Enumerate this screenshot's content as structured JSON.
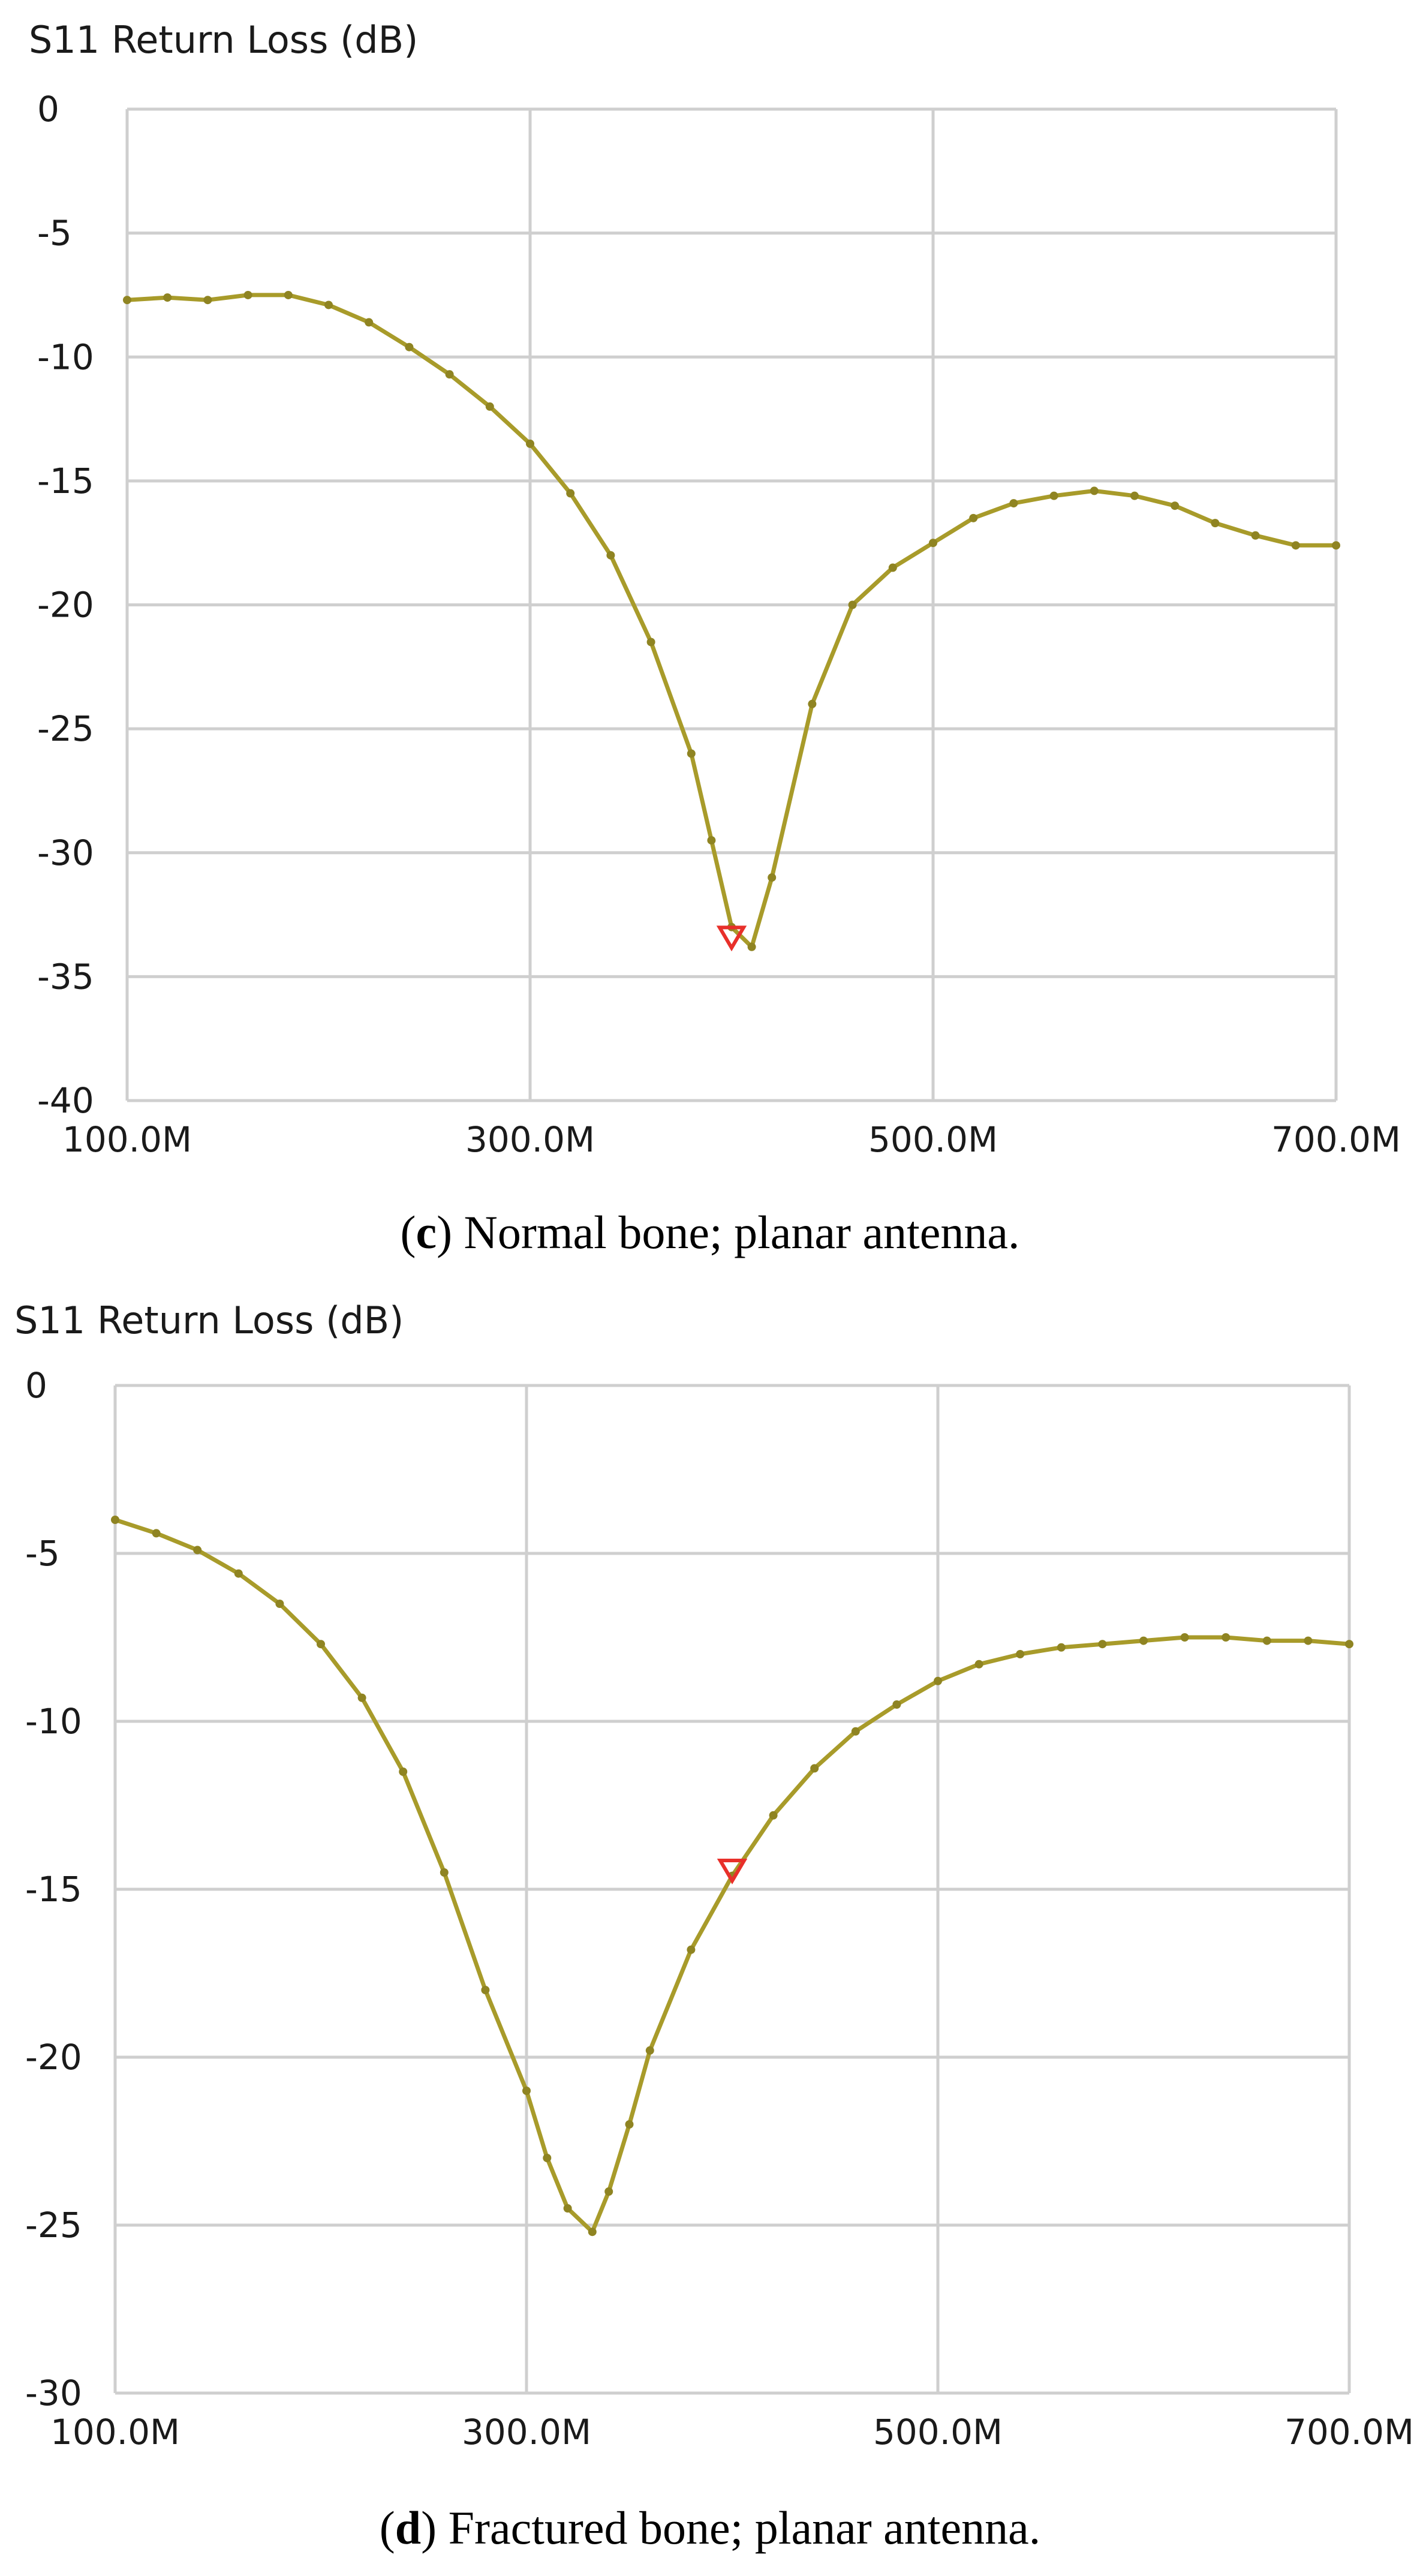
{
  "chart_data": [
    {
      "type": "line",
      "y_axis_title": "S11 Return Loss (dB)",
      "caption_letter": "c",
      "caption_text": ") Normal bone; planar antenna.",
      "x_tick_labels": [
        "100.0M",
        "300.0M",
        "500.0M",
        "700.0M"
      ],
      "x_ticks": [
        100,
        300,
        500,
        700
      ],
      "y_tick_labels": [
        "0",
        "-5",
        "-10",
        "-15",
        "-20",
        "-25",
        "-30",
        "-35",
        "-40"
      ],
      "y_ticks": [
        0,
        -5,
        -10,
        -15,
        -20,
        -25,
        -30,
        -35,
        -40
      ],
      "xlim": [
        100,
        700
      ],
      "ylim": [
        -40,
        0
      ],
      "grid": true,
      "series_color": "#a89b2a",
      "marker_color": "#e8302a",
      "marker": {
        "x": 400,
        "y": -33.5
      },
      "series": [
        {
          "x": [
            100,
            120,
            140,
            160,
            180,
            200,
            220,
            240,
            260,
            280,
            300,
            320,
            340,
            360,
            380,
            390,
            400,
            410,
            420,
            440,
            460,
            480,
            500,
            520,
            540,
            560,
            580,
            600,
            620,
            640,
            660,
            680,
            700
          ],
          "values": [
            -7.7,
            -7.6,
            -7.7,
            -7.5,
            -7.5,
            -7.9,
            -8.6,
            -9.6,
            -10.7,
            -12.0,
            -13.5,
            -15.5,
            -18.0,
            -21.5,
            -26.0,
            -29.5,
            -33.0,
            -33.8,
            -31.0,
            -24.0,
            -20.0,
            -18.5,
            -17.5,
            -16.5,
            -15.9,
            -15.6,
            -15.4,
            -15.6,
            -16.0,
            -16.7,
            -17.2,
            -17.6,
            -17.6
          ]
        }
      ]
    },
    {
      "type": "line",
      "y_axis_title": "S11 Return Loss (dB)",
      "caption_letter": "d",
      "caption_text": ") Fractured bone; planar antenna.",
      "x_tick_labels": [
        "100.0M",
        "300.0M",
        "500.0M",
        "700.0M"
      ],
      "x_ticks": [
        100,
        300,
        500,
        700
      ],
      "y_tick_labels": [
        "0",
        "-5",
        "-10",
        "-15",
        "-20",
        "-25",
        "-30"
      ],
      "y_ticks": [
        0,
        -5,
        -10,
        -15,
        -20,
        -25,
        -30
      ],
      "xlim": [
        100,
        700
      ],
      "ylim": [
        -30,
        0
      ],
      "grid": true,
      "series_color": "#a89b2a",
      "marker_color": "#e8302a",
      "marker": {
        "x": 400,
        "y": -14.5
      },
      "series": [
        {
          "x": [
            100,
            120,
            140,
            160,
            180,
            200,
            220,
            240,
            260,
            280,
            300,
            310,
            320,
            332,
            340,
            350,
            360,
            380,
            400,
            420,
            440,
            460,
            480,
            500,
            520,
            540,
            560,
            580,
            600,
            620,
            640,
            660,
            680,
            700
          ],
          "values": [
            -4.0,
            -4.4,
            -4.9,
            -5.6,
            -6.5,
            -7.7,
            -9.3,
            -11.5,
            -14.5,
            -18.0,
            -21.0,
            -23.0,
            -24.5,
            -25.2,
            -24.0,
            -22.0,
            -19.8,
            -16.8,
            -14.6,
            -12.8,
            -11.4,
            -10.3,
            -9.5,
            -8.8,
            -8.3,
            -8.0,
            -7.8,
            -7.7,
            -7.6,
            -7.5,
            -7.5,
            -7.6,
            -7.6,
            -7.7
          ]
        }
      ]
    }
  ]
}
